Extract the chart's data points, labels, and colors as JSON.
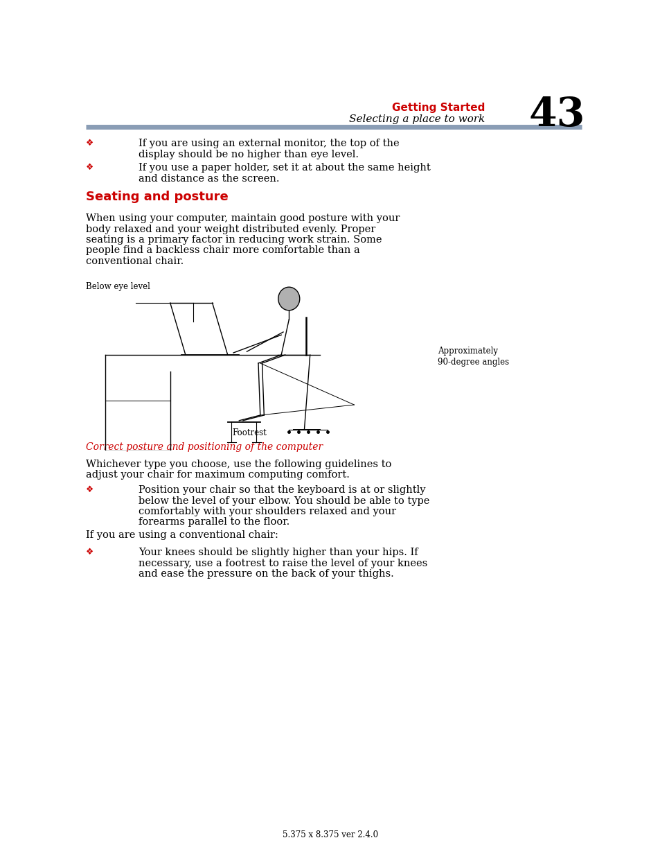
{
  "bg_color": "#ffffff",
  "header_red": "#cc0000",
  "header_title": "Getting Started",
  "header_subtitle": "Selecting a place to work",
  "page_number": "43",
  "divider_color": "#8a9db5",
  "section_heading": "Seating and posture",
  "bullet_color": "#cc0000",
  "bullet1_line1": "If you are using an external monitor, the top of the",
  "bullet1_line2": "display should be no higher than eye level.",
  "bullet2_line1": "If you use a paper holder, set it at about the same height",
  "bullet2_line2": "and distance as the screen.",
  "body_lines": [
    "When using your computer, maintain good posture with your",
    "body relaxed and your weight distributed evenly. Proper",
    "seating is a primary factor in reducing work strain. Some",
    "people find a backless chair more comfortable than a",
    "conventional chair."
  ],
  "fig_label_below": "Below eye level",
  "fig_label_approx": "Approximately\n90-degree angles",
  "fig_label_footrest": "Footrest",
  "fig_caption": "Correct posture and positioning of the computer",
  "fig_caption_color": "#cc0000",
  "whichever_lines": [
    "Whichever type you choose, use the following guidelines to",
    "adjust your chair for maximum computing comfort."
  ],
  "bullet3_lines": [
    "Position your chair so that the keyboard is at or slightly",
    "below the level of your elbow. You should be able to type",
    "comfortably with your shoulders relaxed and your",
    "forearms parallel to the floor."
  ],
  "conventional_para": "If you are using a conventional chair:",
  "bullet4_lines": [
    "Your knees should be slightly higher than your hips. If",
    "necessary, use a footrest to raise the level of your knees",
    "and ease the pressure on the back of your thighs."
  ],
  "footer_text": "5.375 x 8.375 ver 2.4.0",
  "text_color": "#000000",
  "font_size_body": 10.5,
  "font_size_heading": 13,
  "font_size_page": 42,
  "font_size_header_title": 11,
  "font_size_header_subtitle": 11
}
